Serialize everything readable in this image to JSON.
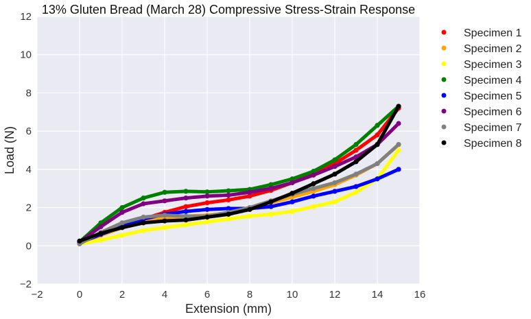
{
  "chart_data": {
    "type": "scatter",
    "title": "13% Gluten Bread (March 28) Compressive Stress-Strain Response",
    "xlabel": "Extension (mm)",
    "ylabel": "Load (N)",
    "xlim": [
      -2,
      16
    ],
    "ylim": [
      -2,
      12
    ],
    "xticks": [
      "−2",
      "0",
      "2",
      "4",
      "6",
      "8",
      "10",
      "12",
      "14",
      "16"
    ],
    "yticks": [
      "−2",
      "0",
      "2",
      "4",
      "6",
      "8",
      "10",
      "12"
    ],
    "grid": true,
    "legend_position": "outside-top-right",
    "series": [
      {
        "name": "Specimen 1",
        "color": "#ff0000",
        "x": [
          0,
          1,
          2,
          3,
          4,
          5,
          6,
          7,
          8,
          9,
          10,
          11,
          12,
          13,
          14,
          15
        ],
        "y": [
          0.2,
          0.6,
          1.0,
          1.4,
          1.75,
          2.05,
          2.25,
          2.4,
          2.6,
          2.9,
          3.3,
          3.75,
          4.3,
          5.0,
          5.8,
          7.2
        ]
      },
      {
        "name": "Specimen 2",
        "color": "#ffa500",
        "x": [
          0,
          1,
          2,
          3,
          4,
          5,
          6,
          7,
          8,
          9,
          10,
          11,
          12,
          13,
          14,
          15
        ],
        "y": [
          0.1,
          0.55,
          0.95,
          1.25,
          1.45,
          1.55,
          1.6,
          1.7,
          1.95,
          2.25,
          2.55,
          2.85,
          3.2,
          3.7,
          4.3,
          5.3
        ]
      },
      {
        "name": "Specimen 3",
        "color": "#ffff00",
        "x": [
          0,
          1,
          2,
          3,
          4,
          5,
          6,
          7,
          8,
          9,
          10,
          11,
          12,
          13,
          14,
          15
        ],
        "y": [
          0.1,
          0.3,
          0.55,
          0.8,
          0.95,
          1.1,
          1.25,
          1.4,
          1.55,
          1.65,
          1.8,
          2.05,
          2.3,
          2.8,
          3.5,
          5.0
        ]
      },
      {
        "name": "Specimen 4",
        "color": "#008000",
        "x": [
          0,
          1,
          2,
          3,
          4,
          5,
          6,
          7,
          8,
          9,
          10,
          11,
          12,
          13,
          14,
          15
        ],
        "y": [
          0.2,
          1.2,
          2.0,
          2.5,
          2.8,
          2.85,
          2.82,
          2.88,
          2.95,
          3.2,
          3.5,
          3.9,
          4.5,
          5.3,
          6.3,
          7.3
        ]
      },
      {
        "name": "Specimen 5",
        "color": "#0000ff",
        "x": [
          0,
          1,
          2,
          3,
          4,
          5,
          6,
          7,
          8,
          9,
          10,
          11,
          12,
          13,
          14,
          15
        ],
        "y": [
          0.15,
          0.6,
          1.0,
          1.4,
          1.65,
          1.8,
          1.9,
          1.95,
          1.95,
          2.05,
          2.3,
          2.6,
          2.85,
          3.1,
          3.5,
          4.0
        ]
      },
      {
        "name": "Specimen 6",
        "color": "#800080",
        "x": [
          0,
          1,
          2,
          3,
          4,
          5,
          6,
          7,
          8,
          9,
          10,
          11,
          12,
          13,
          14,
          15
        ],
        "y": [
          0.2,
          1.0,
          1.75,
          2.2,
          2.35,
          2.5,
          2.6,
          2.65,
          2.8,
          3.0,
          3.3,
          3.7,
          4.15,
          4.65,
          5.3,
          6.4
        ]
      },
      {
        "name": "Specimen 7",
        "color": "#808080",
        "x": [
          0,
          1,
          2,
          3,
          4,
          5,
          6,
          7,
          8,
          9,
          10,
          11,
          12,
          13,
          14,
          15
        ],
        "y": [
          0.1,
          0.7,
          1.2,
          1.5,
          1.6,
          1.55,
          1.55,
          1.75,
          2.0,
          2.35,
          2.7,
          3.0,
          3.3,
          3.75,
          4.3,
          5.3
        ]
      },
      {
        "name": "Specimen 8",
        "color": "#000000",
        "x": [
          0,
          1,
          2,
          3,
          4,
          5,
          6,
          7,
          8,
          9,
          10,
          11,
          12,
          13,
          14,
          15
        ],
        "y": [
          0.25,
          0.65,
          0.95,
          1.2,
          1.3,
          1.35,
          1.5,
          1.65,
          1.9,
          2.3,
          2.75,
          3.25,
          3.75,
          4.4,
          5.3,
          7.3
        ]
      }
    ]
  }
}
